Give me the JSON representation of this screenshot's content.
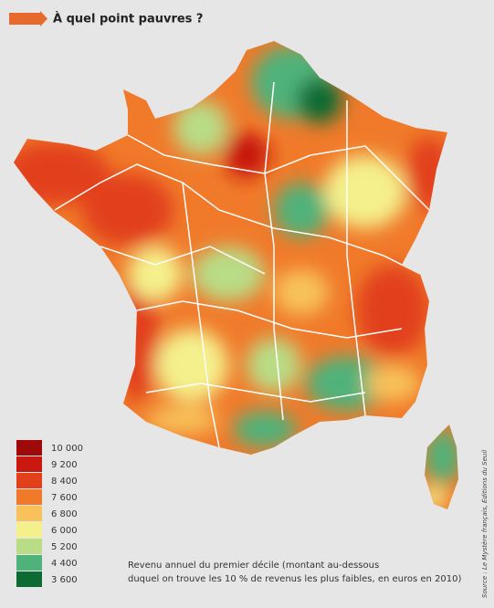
{
  "header": {
    "title": "À quel point pauvres ?"
  },
  "legend": {
    "items": [
      {
        "label": "10 000",
        "color": "#9e0a0a"
      },
      {
        "label": "9 200",
        "color": "#c8180f"
      },
      {
        "label": "8 400",
        "color": "#e2401a"
      },
      {
        "label": "7 600",
        "color": "#f07a2a"
      },
      {
        "label": "6 800",
        "color": "#f8c25a"
      },
      {
        "label": "6 000",
        "color": "#f4f08c"
      },
      {
        "label": "5 200",
        "color": "#b9dc86"
      },
      {
        "label": "4 400",
        "color": "#4fb27a"
      },
      {
        "label": "3 600",
        "color": "#0c6b32"
      }
    ]
  },
  "caption": {
    "lines": [
      "Revenu annuel du premier décile (montant au-dessous",
      "duquel on trouve les 10 % de revenus les plus faibles, en euros en 2010)"
    ]
  },
  "source": "Source : Le Mystère français, Éditions du Seuil"
}
